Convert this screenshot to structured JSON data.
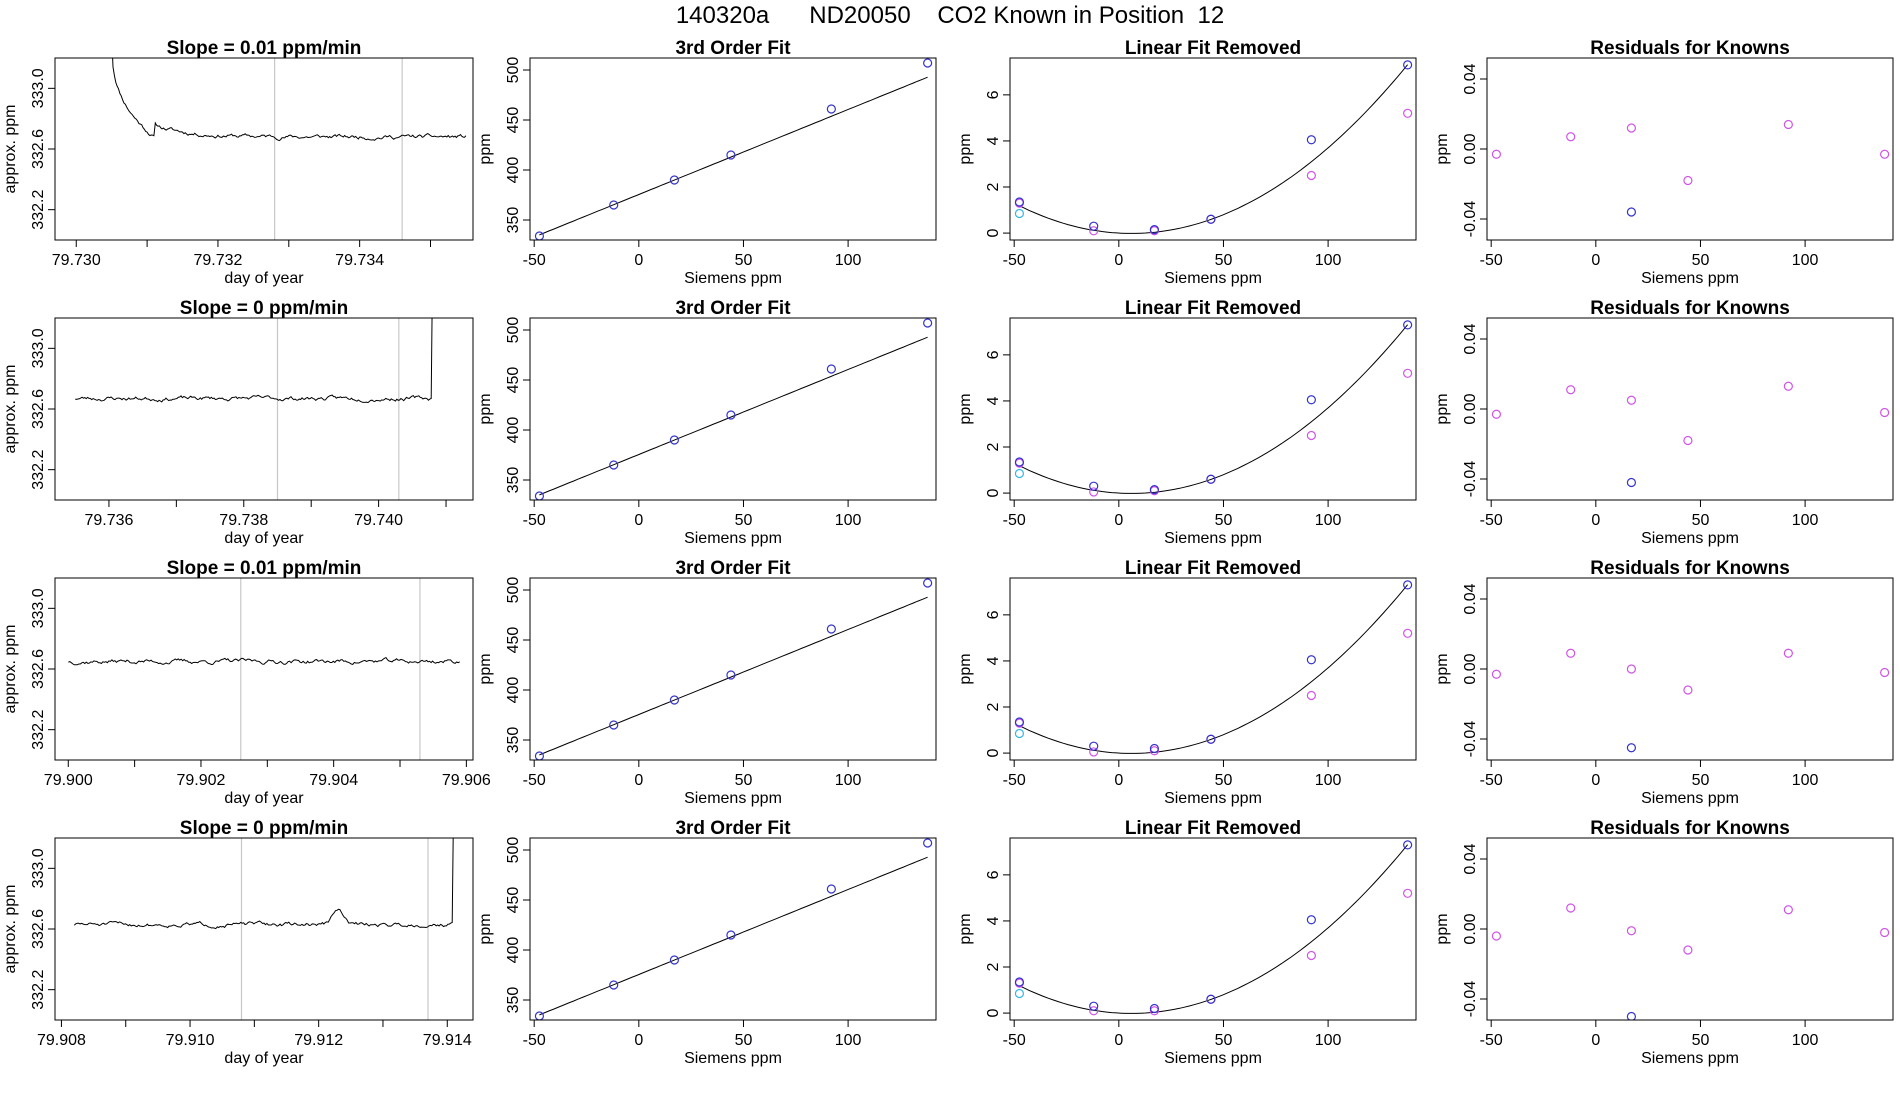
{
  "figure": {
    "title": "140320a      ND20050    CO2 Known in Position  12",
    "colors": {
      "axis": "#000000",
      "series": "#000000",
      "marker_line": "#c8c8c8",
      "point_blue": "#3333cc",
      "point_magenta": "#d154e8",
      "point_cyan": "#38b6e8"
    }
  },
  "chart_data": [
    {
      "type": "line",
      "panel": "trace-row-1",
      "title": "Slope =  0.01  ppm/min",
      "xlabel": "day of year",
      "ylabel": "approx. ppm",
      "xlim": [
        79.7297,
        79.7356
      ],
      "ylim": [
        332.0,
        333.2
      ],
      "xticks": [
        79.73,
        79.731,
        79.732,
        79.733,
        79.734,
        79.735
      ],
      "xtick_labels": [
        "79.730",
        "",
        "79.732",
        "",
        "79.734",
        ""
      ],
      "yticks": [
        332.2,
        332.6,
        333.0
      ],
      "ytick_labels": [
        "332.2",
        "332.6",
        "333.0"
      ],
      "vlines": [
        79.7328,
        79.7346
      ],
      "start_x": 79.7305,
      "end_x": 79.7355,
      "start_y": 333.35,
      "settle_x": 79.7311,
      "level": 332.68,
      "noise": 0.012,
      "seed": 11
    },
    {
      "type": "scatter",
      "panel": "fit-row-1",
      "title": "3rd Order Fit",
      "xlabel": "Siemens ppm",
      "ylabel": "ppm",
      "xlim": [
        -52,
        142
      ],
      "ylim": [
        330,
        512
      ],
      "xticks": [
        -50,
        0,
        50,
        100
      ],
      "xtick_labels": [
        "-50",
        "0",
        "50",
        "100"
      ],
      "yticks": [
        350,
        400,
        450,
        500
      ],
      "ytick_labels": [
        "350",
        "400",
        "450",
        "500"
      ],
      "points": [
        {
          "x": -47.5,
          "y": 334
        },
        {
          "x": -12,
          "y": 365
        },
        {
          "x": 17,
          "y": 390
        },
        {
          "x": 44,
          "y": 415
        },
        {
          "x": 92,
          "y": 461
        },
        {
          "x": 138,
          "y": 507
        }
      ],
      "curve": {
        "x_range": [
          -47.5,
          138
        ],
        "coef": [
          375.5,
          0.85
        ]
      }
    },
    {
      "type": "scatter",
      "panel": "linfit-row-1",
      "title": "Linear Fit Removed",
      "xlabel": "Siemens ppm",
      "ylabel": "ppm",
      "xlim": [
        -52,
        142
      ],
      "ylim": [
        -0.3,
        7.6
      ],
      "xticks": [
        -50,
        0,
        50,
        100
      ],
      "xtick_labels": [
        "-50",
        "0",
        "50",
        "100"
      ],
      "yticks": [
        0,
        2,
        4,
        6
      ],
      "ytick_labels": [
        "0",
        "2",
        "4",
        "6"
      ],
      "points_blue": [
        {
          "x": -47.5,
          "y": 1.35
        },
        {
          "x": -12,
          "y": 0.3
        },
        {
          "x": 17,
          "y": 0.15
        },
        {
          "x": 44,
          "y": 0.6
        },
        {
          "x": 92,
          "y": 4.05
        },
        {
          "x": 138,
          "y": 7.3
        }
      ],
      "points_magenta": [
        {
          "x": -47.5,
          "y": 1.3
        },
        {
          "x": -12,
          "y": 0.1
        },
        {
          "x": 17,
          "y": 0.1
        },
        {
          "x": 44,
          "y": 0.6
        },
        {
          "x": 92,
          "y": 2.5
        },
        {
          "x": 138,
          "y": 5.2
        }
      ],
      "points_cyan": [
        {
          "x": -47.5,
          "y": 0.85
        }
      ],
      "curve": {
        "x_range": [
          -47.5,
          138
        ],
        "coef": [
          0.0,
          -0.005,
          0.00042
        ]
      }
    },
    {
      "type": "scatter",
      "panel": "resid-row-1",
      "title": "Residuals for Knowns",
      "xlabel": "Siemens ppm",
      "ylabel": "ppm",
      "xlim": [
        -52,
        142
      ],
      "ylim": [
        -0.052,
        0.052
      ],
      "xticks": [
        -50,
        0,
        50,
        100
      ],
      "xtick_labels": [
        "-50",
        "0",
        "50",
        "100"
      ],
      "yticks": [
        -0.04,
        0.0,
        0.04
      ],
      "ytick_labels": [
        "-0.04",
        "0.00",
        "0.04"
      ],
      "points_magenta": [
        {
          "x": -47.5,
          "y": -0.003
        },
        {
          "x": -12,
          "y": 0.007
        },
        {
          "x": 17,
          "y": 0.012
        },
        {
          "x": 44,
          "y": -0.018
        },
        {
          "x": 92,
          "y": 0.014
        },
        {
          "x": 138,
          "y": -0.003
        }
      ],
      "points_blue": [
        {
          "x": 17,
          "y": -0.036
        }
      ]
    },
    {
      "type": "line",
      "panel": "trace-row-2",
      "title": "Slope =  0  ppm/min",
      "xlabel": "day of year",
      "ylabel": "approx. ppm",
      "xlim": [
        79.7352,
        79.7414
      ],
      "ylim": [
        332.0,
        333.2
      ],
      "xticks": [
        79.736,
        79.737,
        79.738,
        79.739,
        79.74,
        79.741
      ],
      "xtick_labels": [
        "79.736",
        "",
        "79.738",
        "",
        "79.740",
        ""
      ],
      "yticks": [
        332.2,
        332.6,
        333.0
      ],
      "ytick_labels": [
        "332.2",
        "332.6",
        "333.0"
      ],
      "vlines": [
        79.7385,
        79.7403
      ],
      "start_x": 79.7355,
      "end_x": 79.7408,
      "level": 332.67,
      "noise": 0.012,
      "seed": 23,
      "rise_x": 79.7408
    },
    {
      "type": "scatter",
      "panel": "fit-row-2",
      "title": "3rd Order Fit",
      "xlabel": "Siemens ppm",
      "ylabel": "ppm",
      "xlim": [
        -52,
        142
      ],
      "ylim": [
        330,
        512
      ],
      "xticks": [
        -50,
        0,
        50,
        100
      ],
      "xtick_labels": [
        "-50",
        "0",
        "50",
        "100"
      ],
      "yticks": [
        350,
        400,
        450,
        500
      ],
      "ytick_labels": [
        "350",
        "400",
        "450",
        "500"
      ],
      "points": [
        {
          "x": -47.5,
          "y": 334
        },
        {
          "x": -12,
          "y": 365
        },
        {
          "x": 17,
          "y": 390
        },
        {
          "x": 44,
          "y": 415
        },
        {
          "x": 92,
          "y": 461
        },
        {
          "x": 138,
          "y": 507
        }
      ],
      "curve": {
        "x_range": [
          -47.5,
          138
        ],
        "coef": [
          375.5,
          0.85
        ]
      }
    },
    {
      "type": "scatter",
      "panel": "linfit-row-2",
      "title": "Linear Fit Removed",
      "xlabel": "Siemens ppm",
      "ylabel": "ppm",
      "xlim": [
        -52,
        142
      ],
      "ylim": [
        -0.3,
        7.6
      ],
      "xticks": [
        -50,
        0,
        50,
        100
      ],
      "xtick_labels": [
        "-50",
        "0",
        "50",
        "100"
      ],
      "yticks": [
        0,
        2,
        4,
        6
      ],
      "ytick_labels": [
        "0",
        "2",
        "4",
        "6"
      ],
      "points_blue": [
        {
          "x": -47.5,
          "y": 1.35
        },
        {
          "x": -12,
          "y": 0.3
        },
        {
          "x": 17,
          "y": 0.15
        },
        {
          "x": 44,
          "y": 0.6
        },
        {
          "x": 92,
          "y": 4.05
        },
        {
          "x": 138,
          "y": 7.3
        }
      ],
      "points_magenta": [
        {
          "x": -47.5,
          "y": 1.3
        },
        {
          "x": -12,
          "y": 0.05
        },
        {
          "x": 17,
          "y": 0.1
        },
        {
          "x": 44,
          "y": 0.6
        },
        {
          "x": 92,
          "y": 2.5
        },
        {
          "x": 138,
          "y": 5.2
        }
      ],
      "points_cyan": [
        {
          "x": -47.5,
          "y": 0.85
        }
      ],
      "curve": {
        "x_range": [
          -47.5,
          138
        ],
        "coef": [
          0.0,
          -0.005,
          0.00042
        ]
      }
    },
    {
      "type": "scatter",
      "panel": "resid-row-2",
      "title": "Residuals for Knowns",
      "xlabel": "Siemens ppm",
      "ylabel": "ppm",
      "xlim": [
        -52,
        142
      ],
      "ylim": [
        -0.052,
        0.052
      ],
      "xticks": [
        -50,
        0,
        50,
        100
      ],
      "xtick_labels": [
        "-50",
        "0",
        "50",
        "100"
      ],
      "yticks": [
        -0.04,
        0.0,
        0.04
      ],
      "ytick_labels": [
        "-0.04",
        "0.00",
        "0.04"
      ],
      "points_magenta": [
        {
          "x": -47.5,
          "y": -0.003
        },
        {
          "x": -12,
          "y": 0.011
        },
        {
          "x": 17,
          "y": 0.005
        },
        {
          "x": 44,
          "y": -0.018
        },
        {
          "x": 92,
          "y": 0.013
        },
        {
          "x": 138,
          "y": -0.002
        }
      ],
      "points_blue": [
        {
          "x": 17,
          "y": -0.042
        }
      ]
    },
    {
      "type": "line",
      "panel": "trace-row-3",
      "title": "Slope =  0.01  ppm/min",
      "xlabel": "day of year",
      "ylabel": "approx. ppm",
      "xlim": [
        79.8998,
        79.9061
      ],
      "ylim": [
        332.0,
        333.2
      ],
      "xticks": [
        79.9,
        79.901,
        79.902,
        79.903,
        79.904,
        79.905,
        79.906
      ],
      "xtick_labels": [
        "79.900",
        "",
        "79.902",
        "",
        "79.904",
        "",
        "79.906"
      ],
      "yticks": [
        332.2,
        332.6,
        333.0
      ],
      "ytick_labels": [
        "332.2",
        "332.6",
        "333.0"
      ],
      "vlines": [
        79.9026,
        79.9053
      ],
      "start_x": 79.9,
      "end_x": 79.9059,
      "level": 332.65,
      "noise": 0.013,
      "seed": 37
    },
    {
      "type": "scatter",
      "panel": "fit-row-3",
      "title": "3rd Order Fit",
      "xlabel": "Siemens ppm",
      "ylabel": "ppm",
      "xlim": [
        -52,
        142
      ],
      "ylim": [
        330,
        512
      ],
      "xticks": [
        -50,
        0,
        50,
        100
      ],
      "xtick_labels": [
        "-50",
        "0",
        "50",
        "100"
      ],
      "yticks": [
        350,
        400,
        450,
        500
      ],
      "ytick_labels": [
        "350",
        "400",
        "450",
        "500"
      ],
      "points": [
        {
          "x": -47.5,
          "y": 334
        },
        {
          "x": -12,
          "y": 365
        },
        {
          "x": 17,
          "y": 390
        },
        {
          "x": 44,
          "y": 415
        },
        {
          "x": 92,
          "y": 461
        },
        {
          "x": 138,
          "y": 507
        }
      ],
      "curve": {
        "x_range": [
          -47.5,
          138
        ],
        "coef": [
          375.5,
          0.85
        ]
      }
    },
    {
      "type": "scatter",
      "panel": "linfit-row-3",
      "title": "Linear Fit Removed",
      "xlabel": "Siemens ppm",
      "ylabel": "ppm",
      "xlim": [
        -52,
        142
      ],
      "ylim": [
        -0.3,
        7.6
      ],
      "xticks": [
        -50,
        0,
        50,
        100
      ],
      "xtick_labels": [
        "-50",
        "0",
        "50",
        "100"
      ],
      "yticks": [
        0,
        2,
        4,
        6
      ],
      "ytick_labels": [
        "0",
        "2",
        "4",
        "6"
      ],
      "points_blue": [
        {
          "x": -47.5,
          "y": 1.35
        },
        {
          "x": -12,
          "y": 0.3
        },
        {
          "x": 17,
          "y": 0.2
        },
        {
          "x": 44,
          "y": 0.6
        },
        {
          "x": 92,
          "y": 4.05
        },
        {
          "x": 138,
          "y": 7.3
        }
      ],
      "points_magenta": [
        {
          "x": -47.5,
          "y": 1.3
        },
        {
          "x": -12,
          "y": 0.05
        },
        {
          "x": 17,
          "y": 0.1
        },
        {
          "x": 44,
          "y": 0.6
        },
        {
          "x": 92,
          "y": 2.5
        },
        {
          "x": 138,
          "y": 5.2
        }
      ],
      "points_cyan": [
        {
          "x": -47.5,
          "y": 0.85
        }
      ],
      "curve": {
        "x_range": [
          -47.5,
          138
        ],
        "coef": [
          0.0,
          -0.005,
          0.00042
        ]
      }
    },
    {
      "type": "scatter",
      "panel": "resid-row-3",
      "title": "Residuals for Knowns",
      "xlabel": "Siemens ppm",
      "ylabel": "ppm",
      "xlim": [
        -52,
        142
      ],
      "ylim": [
        -0.052,
        0.052
      ],
      "xticks": [
        -50,
        0,
        50,
        100
      ],
      "xtick_labels": [
        "-50",
        "0",
        "50",
        "100"
      ],
      "yticks": [
        -0.04,
        0.0,
        0.04
      ],
      "ytick_labels": [
        "-0.04",
        "0.00",
        "0.04"
      ],
      "points_magenta": [
        {
          "x": -47.5,
          "y": -0.003
        },
        {
          "x": -12,
          "y": 0.009
        },
        {
          "x": 17,
          "y": 0.0
        },
        {
          "x": 44,
          "y": -0.012
        },
        {
          "x": 92,
          "y": 0.009
        },
        {
          "x": 138,
          "y": -0.002
        }
      ],
      "points_blue": [
        {
          "x": 17,
          "y": -0.045
        }
      ]
    },
    {
      "type": "line",
      "panel": "trace-row-4",
      "title": "Slope =  0  ppm/min",
      "xlabel": "day of year",
      "ylabel": "approx. ppm",
      "xlim": [
        79.9079,
        79.9144
      ],
      "ylim": [
        332.0,
        333.2
      ],
      "xticks": [
        79.908,
        79.909,
        79.91,
        79.911,
        79.912,
        79.913,
        79.914
      ],
      "xtick_labels": [
        "79.908",
        "",
        "79.910",
        "",
        "79.912",
        "",
        "79.914"
      ],
      "yticks": [
        332.2,
        332.6,
        333.0
      ],
      "ytick_labels": [
        "332.2",
        "332.6",
        "333.0"
      ],
      "vlines": [
        79.9108,
        79.9137
      ],
      "start_x": 79.9082,
      "end_x": 79.9141,
      "level": 332.63,
      "noise": 0.012,
      "seed": 51,
      "rise_x": 79.9141,
      "bump_x": 79.9123
    },
    {
      "type": "scatter",
      "panel": "fit-row-4",
      "title": "3rd Order Fit",
      "xlabel": "Siemens ppm",
      "ylabel": "ppm",
      "xlim": [
        -52,
        142
      ],
      "ylim": [
        330,
        512
      ],
      "xticks": [
        -50,
        0,
        50,
        100
      ],
      "xtick_labels": [
        "-50",
        "0",
        "50",
        "100"
      ],
      "yticks": [
        350,
        400,
        450,
        500
      ],
      "ytick_labels": [
        "350",
        "400",
        "450",
        "500"
      ],
      "points": [
        {
          "x": -47.5,
          "y": 334
        },
        {
          "x": -12,
          "y": 365
        },
        {
          "x": 17,
          "y": 390
        },
        {
          "x": 44,
          "y": 415
        },
        {
          "x": 92,
          "y": 461
        },
        {
          "x": 138,
          "y": 507
        }
      ],
      "curve": {
        "x_range": [
          -47.5,
          138
        ],
        "coef": [
          375.5,
          0.85
        ]
      }
    },
    {
      "type": "scatter",
      "panel": "linfit-row-4",
      "title": "Linear Fit Removed",
      "xlabel": "Siemens ppm",
      "ylabel": "ppm",
      "xlim": [
        -52,
        142
      ],
      "ylim": [
        -0.3,
        7.6
      ],
      "xticks": [
        -50,
        0,
        50,
        100
      ],
      "xtick_labels": [
        "-50",
        "0",
        "50",
        "100"
      ],
      "yticks": [
        0,
        2,
        4,
        6
      ],
      "ytick_labels": [
        "0",
        "2",
        "4",
        "6"
      ],
      "points_blue": [
        {
          "x": -47.5,
          "y": 1.35
        },
        {
          "x": -12,
          "y": 0.3
        },
        {
          "x": 17,
          "y": 0.2
        },
        {
          "x": 44,
          "y": 0.6
        },
        {
          "x": 92,
          "y": 4.05
        },
        {
          "x": 138,
          "y": 7.3
        }
      ],
      "points_magenta": [
        {
          "x": -47.5,
          "y": 1.3
        },
        {
          "x": -12,
          "y": 0.1
        },
        {
          "x": 17,
          "y": 0.1
        },
        {
          "x": 44,
          "y": 0.6
        },
        {
          "x": 92,
          "y": 2.5
        },
        {
          "x": 138,
          "y": 5.2
        }
      ],
      "points_cyan": [
        {
          "x": -47.5,
          "y": 0.85
        }
      ],
      "curve": {
        "x_range": [
          -47.5,
          138
        ],
        "coef": [
          0.0,
          -0.005,
          0.00042
        ]
      }
    },
    {
      "type": "scatter",
      "panel": "resid-row-4",
      "title": "Residuals for Knowns",
      "xlabel": "Siemens ppm",
      "ylabel": "ppm",
      "xlim": [
        -52,
        142
      ],
      "ylim": [
        -0.052,
        0.052
      ],
      "xticks": [
        -50,
        0,
        50,
        100
      ],
      "xtick_labels": [
        "-50",
        "0",
        "50",
        "100"
      ],
      "yticks": [
        -0.04,
        0.0,
        0.04
      ],
      "ytick_labels": [
        "-0.04",
        "0.00",
        "0.04"
      ],
      "points_magenta": [
        {
          "x": -47.5,
          "y": -0.004
        },
        {
          "x": -12,
          "y": 0.012
        },
        {
          "x": 17,
          "y": -0.001
        },
        {
          "x": 44,
          "y": -0.012
        },
        {
          "x": 92,
          "y": 0.011
        },
        {
          "x": 138,
          "y": -0.002
        }
      ],
      "points_blue": [
        {
          "x": 17,
          "y": -0.05
        }
      ]
    }
  ]
}
